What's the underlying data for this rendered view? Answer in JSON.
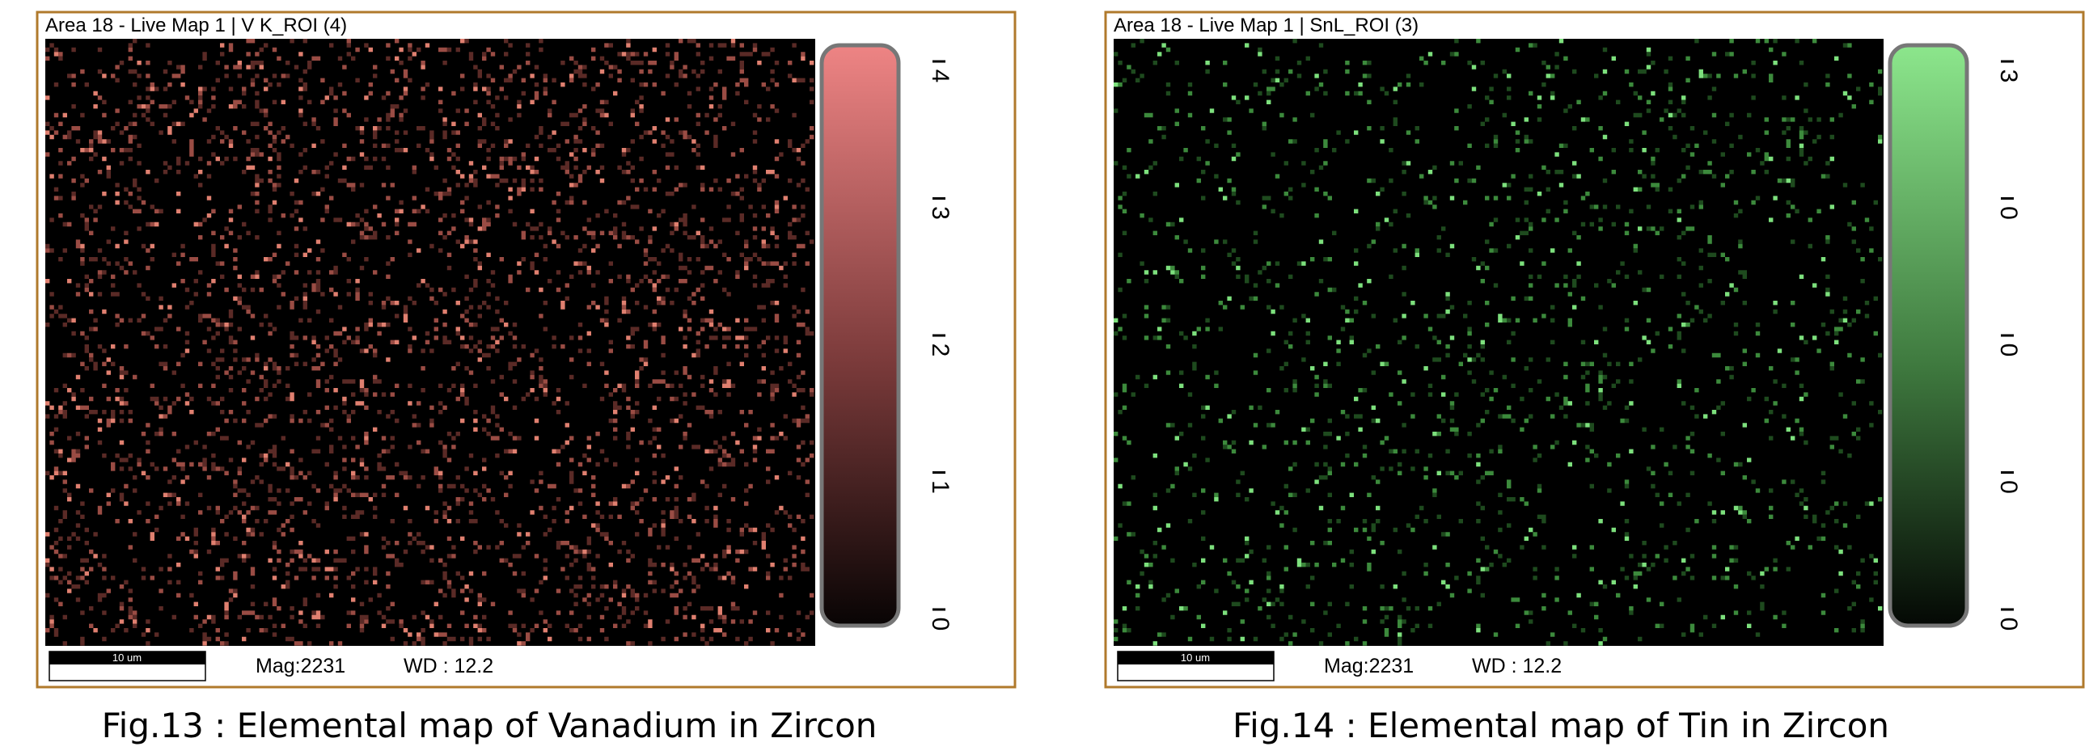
{
  "panels": [
    {
      "title": "Area 18 - Live Map 1 | V K_ROI (4)",
      "colorbar_ticks": [
        "4",
        "3",
        "2",
        "1",
        "0"
      ],
      "scale_bar": "10 um",
      "mag": "Mag:2231",
      "wd": "WD : 12.2",
      "caption": "Fig.13 : Elemental map of Vanadium in Zircon"
    },
    {
      "title": "Area 18 - Live Map 1 | SnL_ROI (3)",
      "colorbar_ticks": [
        "3",
        "0",
        "0",
        "0",
        "0"
      ],
      "scale_bar": "10 um",
      "mag": "Mag:2231",
      "wd": "WD : 12.2",
      "caption": "Fig.14 : Elemental map of Tin in Zircon"
    }
  ]
}
